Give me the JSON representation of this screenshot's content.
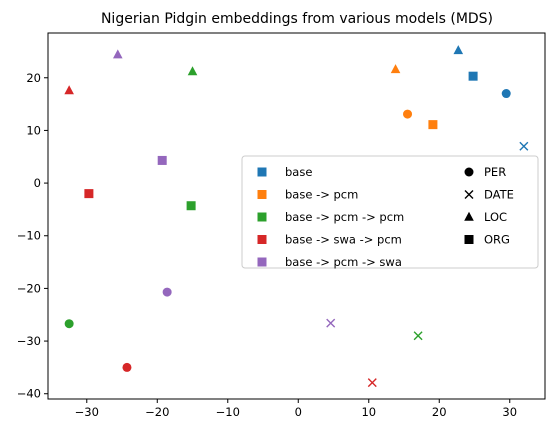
{
  "chart_data": {
    "type": "scatter",
    "title": "Nigerian Pidgin embeddings from various models (MDS)",
    "xlabel": "",
    "ylabel": "",
    "xlim": [
      -35.5,
      35
    ],
    "ylim": [
      -41,
      28.5
    ],
    "xticks": [
      -30,
      -20,
      -10,
      0,
      10,
      20,
      30
    ],
    "yticks": [
      -40,
      -30,
      -20,
      -10,
      0,
      10,
      20
    ],
    "grid": false,
    "legend_placement": "center-right",
    "series": [
      {
        "name": "base",
        "color": "#1f77b4",
        "points": [
          {
            "x": 29.5,
            "y": 17.0,
            "marker": "circle"
          },
          {
            "x": 32.0,
            "y": 7.0,
            "marker": "x"
          },
          {
            "x": 22.7,
            "y": 25.2,
            "marker": "triangle"
          },
          {
            "x": 24.8,
            "y": 20.3,
            "marker": "square"
          }
        ]
      },
      {
        "name": "base -> pcm",
        "color": "#ff7f0e",
        "points": [
          {
            "x": 15.5,
            "y": 13.1,
            "marker": "circle"
          },
          {
            "x": 13.8,
            "y": 21.6,
            "marker": "triangle"
          },
          {
            "x": 19.1,
            "y": 11.1,
            "marker": "square"
          }
        ]
      },
      {
        "name": "base -> pcm -> pcm",
        "color": "#2ca02c",
        "points": [
          {
            "x": -32.5,
            "y": -26.7,
            "marker": "circle"
          },
          {
            "x": 17.0,
            "y": -29.0,
            "marker": "x"
          },
          {
            "x": -15.0,
            "y": 21.2,
            "marker": "triangle"
          },
          {
            "x": -15.2,
            "y": -4.3,
            "marker": "square"
          }
        ]
      },
      {
        "name": "base -> swa -> pcm",
        "color": "#d62728",
        "points": [
          {
            "x": -24.3,
            "y": -35.0,
            "marker": "circle"
          },
          {
            "x": 10.5,
            "y": -37.9,
            "marker": "x"
          },
          {
            "x": -32.5,
            "y": 17.6,
            "marker": "triangle"
          },
          {
            "x": -29.7,
            "y": -2.0,
            "marker": "square"
          }
        ]
      },
      {
        "name": "base -> pcm -> swa",
        "color": "#9467bd",
        "points": [
          {
            "x": -18.6,
            "y": -20.7,
            "marker": "circle"
          },
          {
            "x": 4.6,
            "y": -26.6,
            "marker": "x"
          },
          {
            "x": -25.6,
            "y": 24.4,
            "marker": "triangle"
          },
          {
            "x": -19.3,
            "y": 4.3,
            "marker": "square"
          }
        ]
      }
    ],
    "marker_legend": [
      {
        "label": "PER",
        "marker": "circle"
      },
      {
        "label": "DATE",
        "marker": "x"
      },
      {
        "label": "LOC",
        "marker": "triangle"
      },
      {
        "label": "ORG",
        "marker": "square"
      }
    ]
  }
}
